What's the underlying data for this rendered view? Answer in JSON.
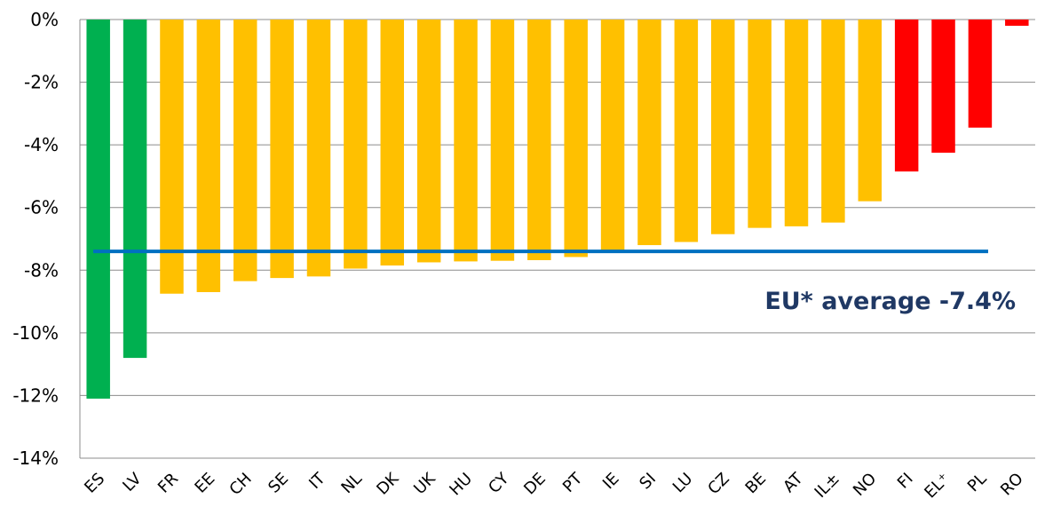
{
  "chart_data": {
    "type": "bar",
    "categories": [
      "ES",
      "LV",
      "FR",
      "EE",
      "CH",
      "SE",
      "IT",
      "NL",
      "DK",
      "UK",
      "HU",
      "CY",
      "DE",
      "PT",
      "IE",
      "SI",
      "LU",
      "CZ",
      "BE",
      "AT",
      "IL±",
      "NO",
      "FI",
      "EL⁺",
      "PL",
      "RO"
    ],
    "values": [
      -12.1,
      -10.8,
      -8.75,
      -8.7,
      -8.35,
      -8.25,
      -8.2,
      -7.95,
      -7.85,
      -7.75,
      -7.72,
      -7.7,
      -7.68,
      -7.58,
      -7.4,
      -7.2,
      -7.1,
      -6.85,
      -6.65,
      -6.6,
      -6.48,
      -5.8,
      -4.85,
      -4.25,
      -3.45,
      -0.2
    ],
    "colors": [
      "#00B050",
      "#00B050",
      "#FFC000",
      "#FFC000",
      "#FFC000",
      "#FFC000",
      "#FFC000",
      "#FFC000",
      "#FFC000",
      "#FFC000",
      "#FFC000",
      "#FFC000",
      "#FFC000",
      "#FFC000",
      "#FFC000",
      "#FFC000",
      "#FFC000",
      "#FFC000",
      "#FFC000",
      "#FFC000",
      "#FFC000",
      "#FFC000",
      "#FF0000",
      "#FF0000",
      "#FF0000",
      "#FF0000"
    ],
    "ylim": [
      -14,
      0
    ],
    "yticks": [
      0,
      -2,
      -4,
      -6,
      -8,
      -10,
      -12,
      -14
    ],
    "ytick_labels": [
      "0%",
      "-2%",
      "-4%",
      "-6%",
      "-8%",
      "-10%",
      "-12%",
      "-14%"
    ],
    "grid": true,
    "reference_line": {
      "value": -7.4,
      "label": "EU* average -7.4%",
      "color": "#0070C0",
      "label_color": "#1F3864"
    },
    "title": "",
    "xlabel": "",
    "ylabel": ""
  }
}
